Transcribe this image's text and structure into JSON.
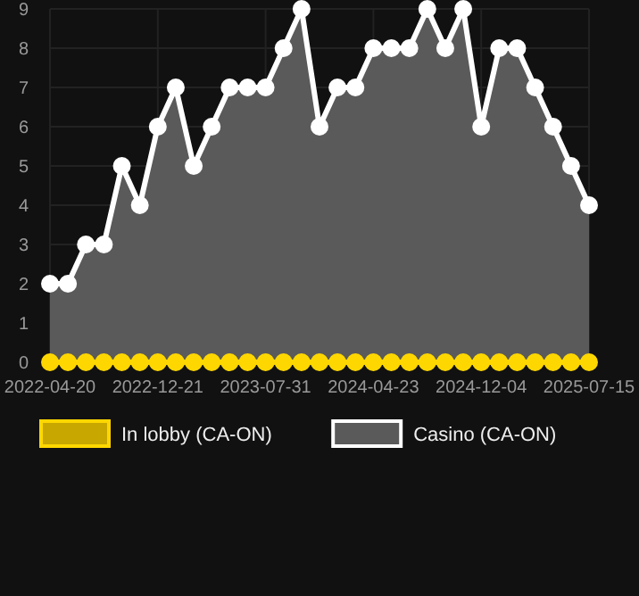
{
  "chart_data": {
    "type": "area",
    "categories": [
      "2022-04-20",
      null,
      null,
      null,
      null,
      null,
      "2022-12-21",
      null,
      null,
      null,
      null,
      null,
      "2023-07-31",
      null,
      null,
      null,
      null,
      null,
      "2024-04-23",
      null,
      null,
      null,
      null,
      null,
      "2024-12-04",
      null,
      null,
      null,
      null,
      null,
      "2025-07-15"
    ],
    "series": [
      {
        "name": "In lobby (CA-ON)",
        "color": "#ffd700",
        "type": "line",
        "values": [
          0,
          0,
          0,
          0,
          0,
          0,
          0,
          0,
          0,
          0,
          0,
          0,
          0,
          0,
          0,
          0,
          0,
          0,
          0,
          0,
          0,
          0,
          0,
          0,
          0,
          0,
          0,
          0,
          0,
          0,
          0
        ]
      },
      {
        "name": "Casino (CA-ON)",
        "color": "#ffffff",
        "values": [
          2,
          2,
          3,
          3,
          5,
          4,
          6,
          7,
          5,
          6,
          7,
          7,
          7,
          8,
          9,
          6,
          7,
          7,
          8,
          8,
          8,
          9,
          8,
          9,
          6,
          8,
          8,
          7,
          6,
          5,
          4
        ]
      }
    ],
    "ylim": [
      0,
      9
    ],
    "yticks": [
      0,
      1,
      2,
      3,
      4,
      5,
      6,
      7,
      8,
      9
    ],
    "grid": true,
    "legend": "bottom",
    "marker": "circle"
  }
}
